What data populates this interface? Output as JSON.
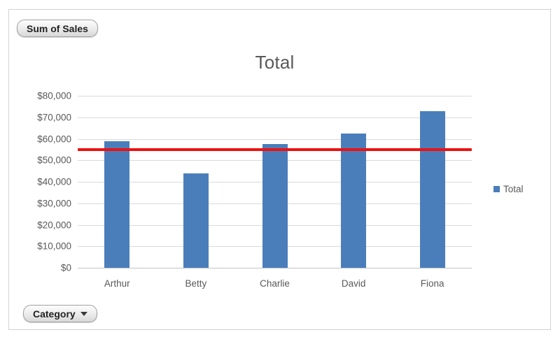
{
  "pivot_buttons": {
    "value_field": "Sum of Sales",
    "axis_field": "Category",
    "dropdown_icon": "▼"
  },
  "chart_data": {
    "type": "bar",
    "title": "Total",
    "categories": [
      "Arthur",
      "Betty",
      "Charlie",
      "David",
      "Fiona"
    ],
    "series": [
      {
        "name": "Total",
        "color": "#4a7ebb",
        "values": [
          59000,
          44000,
          57500,
          62500,
          73000
        ]
      }
    ],
    "target_line": {
      "value": 55000,
      "color": "#ee1111"
    },
    "ylim": [
      0,
      80000
    ],
    "ytick_step": 10000,
    "ytick_labels": [
      "$80,000",
      "$70,000",
      "$60,000",
      "$50,000",
      "$40,000",
      "$30,000",
      "$20,000",
      "$10,000",
      "$0"
    ],
    "xlabel": "",
    "ylabel": "",
    "grid": true,
    "legend_position": "right"
  },
  "colors": {
    "bar": "#4a7ebb",
    "target_line": "#ee1111",
    "gridline": "#dadada",
    "text": "#595959"
  }
}
